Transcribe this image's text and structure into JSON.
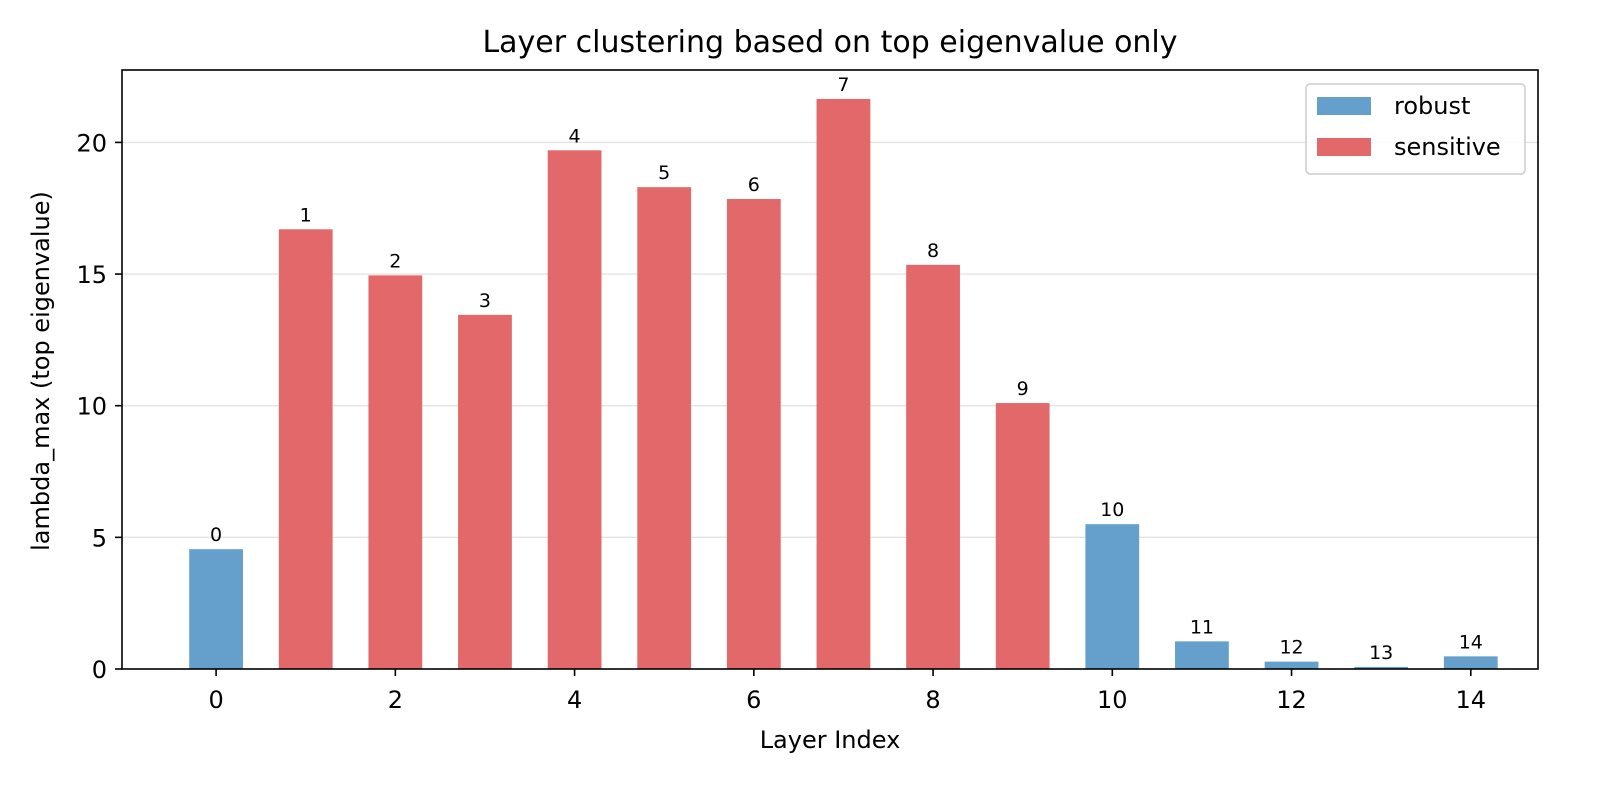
{
  "chart_data": {
    "type": "bar",
    "title": "Layer clustering based on top eigenvalue only",
    "xlabel": "Layer Index",
    "ylabel": "lambda_max (top eigenvalue)",
    "categories": [
      0,
      1,
      2,
      3,
      4,
      5,
      6,
      7,
      8,
      9,
      10,
      11,
      12,
      13,
      14
    ],
    "values": [
      4.55,
      16.7,
      14.95,
      13.45,
      19.7,
      18.3,
      17.85,
      21.65,
      15.35,
      10.1,
      5.5,
      1.05,
      0.28,
      0.08,
      0.48
    ],
    "bar_labels": [
      "0",
      "1",
      "2",
      "3",
      "4",
      "5",
      "6",
      "7",
      "8",
      "9",
      "10",
      "11",
      "12",
      "13",
      "14"
    ],
    "groups": [
      "robust",
      "sensitive",
      "sensitive",
      "sensitive",
      "sensitive",
      "sensitive",
      "sensitive",
      "sensitive",
      "sensitive",
      "sensitive",
      "robust",
      "robust",
      "robust",
      "robust",
      "robust"
    ],
    "xlim": [
      -1.05,
      14.75
    ],
    "ylim": [
      0,
      22.75
    ],
    "xticks": [
      0,
      2,
      4,
      6,
      8,
      10,
      12,
      14
    ],
    "xtick_labels": [
      "0",
      "2",
      "4",
      "6",
      "8",
      "10",
      "12",
      "14"
    ],
    "yticks": [
      0,
      5,
      10,
      15,
      20
    ],
    "ytick_labels": [
      "0",
      "5",
      "10",
      "15",
      "20"
    ],
    "grid": "horizontal",
    "legend": {
      "position": "top-right",
      "entries": [
        {
          "name": "robust",
          "color": "#64a0cb"
        },
        {
          "name": "sensitive",
          "color": "#e3686a"
        }
      ]
    },
    "colors": {
      "robust": "#64a0cb",
      "sensitive": "#e3686a"
    }
  }
}
